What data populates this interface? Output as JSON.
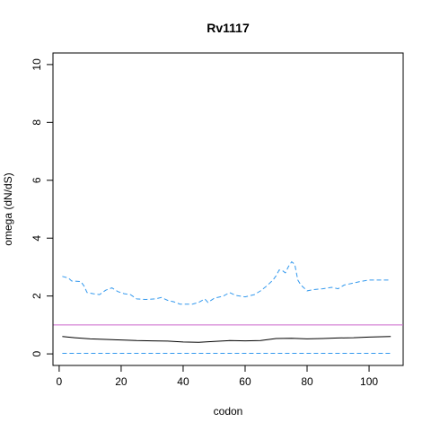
{
  "chart_data": {
    "type": "line",
    "title": "Rv1117",
    "xlabel": "codon",
    "ylabel": "omega (dN/dS)",
    "xlim": [
      -2,
      111
    ],
    "ylim": [
      -0.4,
      10.4
    ],
    "x_ticks": [
      0,
      20,
      40,
      60,
      80,
      100
    ],
    "y_ticks": [
      0,
      2,
      4,
      6,
      8,
      10
    ],
    "grid": false,
    "reference_line": {
      "y": 1,
      "color": "#CC66CC"
    },
    "series": [
      {
        "style": "solid",
        "color": "#000000",
        "points": [
          [
            1,
            0.6
          ],
          [
            5,
            0.56
          ],
          [
            10,
            0.52
          ],
          [
            15,
            0.5
          ],
          [
            20,
            0.48
          ],
          [
            25,
            0.46
          ],
          [
            30,
            0.45
          ],
          [
            35,
            0.44
          ],
          [
            40,
            0.41
          ],
          [
            45,
            0.4
          ],
          [
            50,
            0.43
          ],
          [
            55,
            0.46
          ],
          [
            60,
            0.45
          ],
          [
            65,
            0.46
          ],
          [
            70,
            0.53
          ],
          [
            75,
            0.54
          ],
          [
            80,
            0.52
          ],
          [
            85,
            0.53
          ],
          [
            90,
            0.55
          ],
          [
            95,
            0.56
          ],
          [
            100,
            0.58
          ],
          [
            107,
            0.6
          ]
        ]
      },
      {
        "style": "dashed",
        "color": "#3399EE",
        "points": [
          [
            1,
            2.68
          ],
          [
            3,
            2.62
          ],
          [
            4,
            2.52
          ],
          [
            7,
            2.5
          ],
          [
            8,
            2.35
          ],
          [
            9,
            2.12
          ],
          [
            11,
            2.08
          ],
          [
            13,
            2.05
          ],
          [
            15,
            2.2
          ],
          [
            17,
            2.28
          ],
          [
            19,
            2.15
          ],
          [
            21,
            2.08
          ],
          [
            23,
            2.05
          ],
          [
            25,
            1.9
          ],
          [
            28,
            1.88
          ],
          [
            31,
            1.9
          ],
          [
            33,
            1.95
          ],
          [
            35,
            1.85
          ],
          [
            37,
            1.8
          ],
          [
            39,
            1.72
          ],
          [
            41,
            1.72
          ],
          [
            43,
            1.72
          ],
          [
            45,
            1.78
          ],
          [
            47,
            1.9
          ],
          [
            48,
            1.78
          ],
          [
            50,
            1.92
          ],
          [
            53,
            2.0
          ],
          [
            55,
            2.12
          ],
          [
            57,
            2.02
          ],
          [
            60,
            1.97
          ],
          [
            63,
            2.05
          ],
          [
            65,
            2.18
          ],
          [
            67,
            2.35
          ],
          [
            69,
            2.55
          ],
          [
            70,
            2.7
          ],
          [
            71,
            2.9
          ],
          [
            72,
            2.88
          ],
          [
            73,
            2.8
          ],
          [
            74,
            3.02
          ],
          [
            75,
            3.18
          ],
          [
            76,
            3.1
          ],
          [
            77,
            2.55
          ],
          [
            78,
            2.38
          ],
          [
            80,
            2.18
          ],
          [
            82,
            2.22
          ],
          [
            85,
            2.25
          ],
          [
            88,
            2.3
          ],
          [
            90,
            2.25
          ],
          [
            92,
            2.38
          ],
          [
            95,
            2.45
          ],
          [
            97,
            2.5
          ],
          [
            100,
            2.55
          ],
          [
            103,
            2.55
          ],
          [
            107,
            2.55
          ]
        ]
      },
      {
        "style": "dashed",
        "color": "#3399EE",
        "points": [
          [
            1,
            0.02
          ],
          [
            107,
            0.02
          ]
        ]
      }
    ]
  }
}
